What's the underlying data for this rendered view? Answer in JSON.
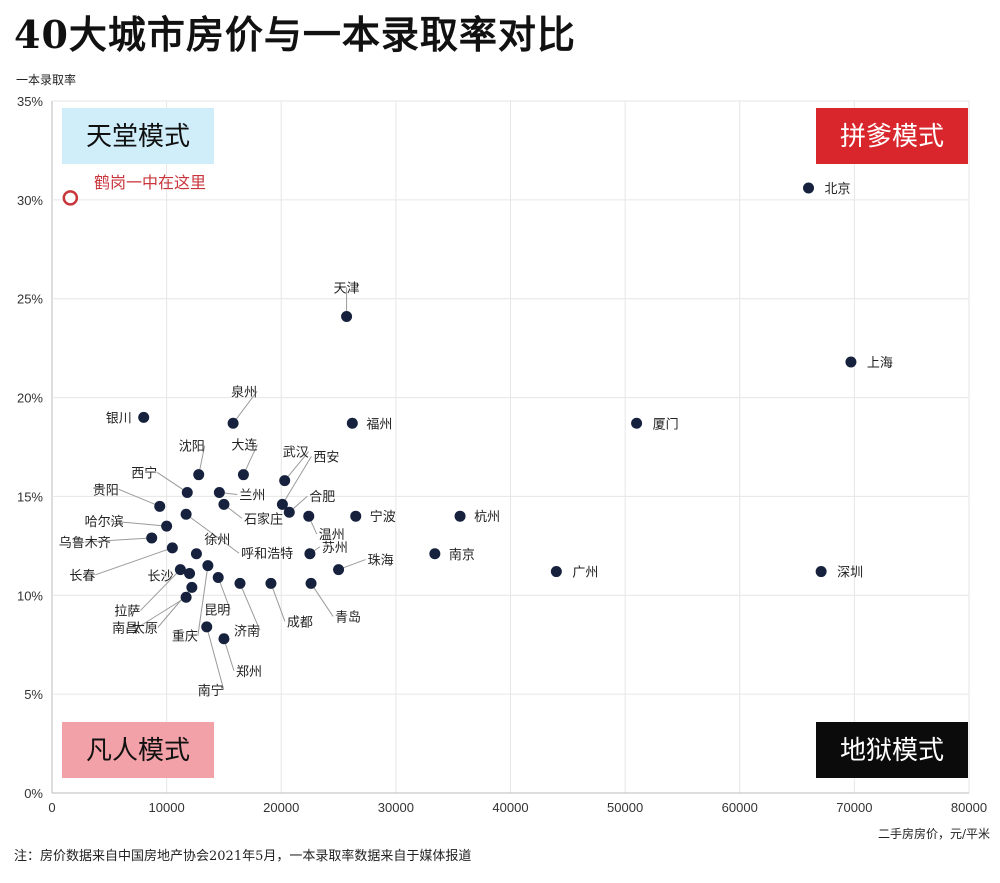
{
  "title": "40大城市房价与一本录取率对比",
  "footnote": "注：房价数据来自中国房地产协会2021年5月，一本录取率数据来自于媒体报道",
  "chart_data": {
    "type": "scatter",
    "xlabel": "二手房房价，元/平米",
    "ylabel": "一本录取率",
    "xlim": [
      0,
      80000
    ],
    "ylim": [
      0,
      35
    ],
    "x_ticks": [
      "0",
      "10000",
      "20000",
      "30000",
      "40000",
      "50000",
      "60000",
      "70000",
      "80000"
    ],
    "y_ticks": [
      "0%",
      "5%",
      "10%",
      "15%",
      "20%",
      "25%",
      "30%",
      "35%"
    ],
    "grid": true,
    "quadrants": {
      "top_left": {
        "label": "天堂模式",
        "bg": "#cfeefa",
        "color": "#111111"
      },
      "top_right": {
        "label": "拼爹模式",
        "bg": "#d8262c",
        "color": "#ffffff"
      },
      "bottom_left": {
        "label": "凡人模式",
        "bg": "#f2a1a8",
        "color": "#111111"
      },
      "bottom_right": {
        "label": "地狱模式",
        "bg": "#0b0b0b",
        "color": "#ffffff"
      }
    },
    "highlight": {
      "label": "鹤岗一中在这里",
      "x": 1600,
      "y": 30.1,
      "color": "#c8363c"
    },
    "point_color": "#16213d",
    "points": [
      {
        "name": "北京",
        "x": 66000,
        "y": 30.6
      },
      {
        "name": "上海",
        "x": 69700,
        "y": 21.8
      },
      {
        "name": "天津",
        "x": 25700,
        "y": 24.1
      },
      {
        "name": "厦门",
        "x": 51000,
        "y": 18.7
      },
      {
        "name": "深圳",
        "x": 67100,
        "y": 11.2
      },
      {
        "name": "广州",
        "x": 44000,
        "y": 11.2
      },
      {
        "name": "杭州",
        "x": 35600,
        "y": 14.0
      },
      {
        "name": "南京",
        "x": 33400,
        "y": 12.1
      },
      {
        "name": "福州",
        "x": 26200,
        "y": 18.7
      },
      {
        "name": "宁波",
        "x": 26500,
        "y": 14.0
      },
      {
        "name": "珠海",
        "x": 25000,
        "y": 11.3
      },
      {
        "name": "苏州",
        "x": 22500,
        "y": 12.1
      },
      {
        "name": "温州",
        "x": 22400,
        "y": 14.0
      },
      {
        "name": "青岛",
        "x": 22600,
        "y": 10.6
      },
      {
        "name": "成都",
        "x": 19100,
        "y": 10.6
      },
      {
        "name": "合肥",
        "x": 20700,
        "y": 14.2
      },
      {
        "name": "西安",
        "x": 20100,
        "y": 14.6
      },
      {
        "name": "武汉",
        "x": 20300,
        "y": 15.8
      },
      {
        "name": "泉州",
        "x": 15800,
        "y": 18.7
      },
      {
        "name": "大连",
        "x": 16700,
        "y": 16.1
      },
      {
        "name": "银川",
        "x": 8000,
        "y": 19.0
      },
      {
        "name": "沈阳",
        "x": 12800,
        "y": 16.1
      },
      {
        "name": "西宁",
        "x": 11800,
        "y": 15.2
      },
      {
        "name": "兰州",
        "x": 14600,
        "y": 15.2
      },
      {
        "name": "贵阳",
        "x": 9400,
        "y": 14.5
      },
      {
        "name": "石家庄",
        "x": 15000,
        "y": 14.6
      },
      {
        "name": "哈尔滨",
        "x": 10000,
        "y": 13.5
      },
      {
        "name": "乌鲁木齐",
        "x": 8700,
        "y": 12.9
      },
      {
        "name": "长春",
        "x": 10500,
        "y": 12.4
      },
      {
        "name": "呼和浩特",
        "x": 11700,
        "y": 14.1
      },
      {
        "name": "徐州",
        "x": 12600,
        "y": 12.1
      },
      {
        "name": "长沙",
        "x": 12000,
        "y": 11.1
      },
      {
        "name": "拉萨",
        "x": 11200,
        "y": 11.3
      },
      {
        "name": "南昌",
        "x": 11700,
        "y": 9.9
      },
      {
        "name": "太原",
        "x": 12200,
        "y": 10.4
      },
      {
        "name": "重庆",
        "x": 13600,
        "y": 11.5
      },
      {
        "name": "昆明",
        "x": 14500,
        "y": 10.9
      },
      {
        "name": "济南",
        "x": 16400,
        "y": 10.6
      },
      {
        "name": "南宁",
        "x": 13500,
        "y": 8.4
      },
      {
        "name": "郑州",
        "x": 15000,
        "y": 7.8
      }
    ]
  }
}
